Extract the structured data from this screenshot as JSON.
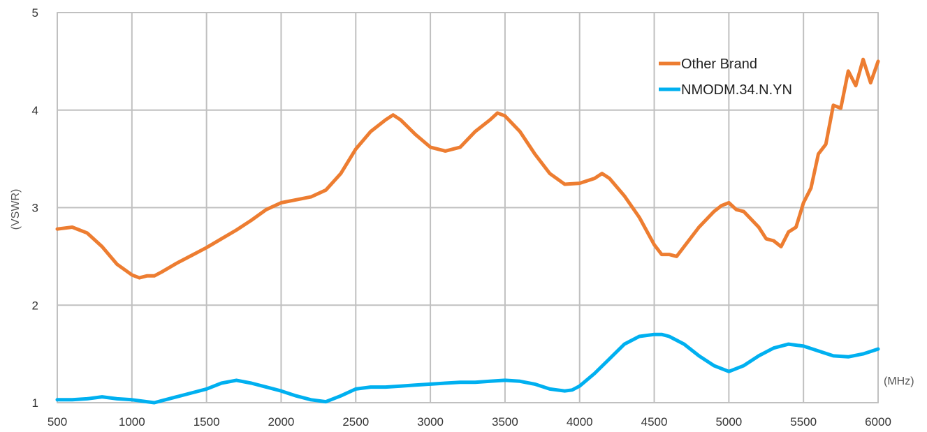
{
  "chart_data": {
    "type": "line",
    "title": "",
    "xlabel": "(MHz)",
    "ylabel": "(VSWR)",
    "xlim": [
      500,
      6000
    ],
    "ylim": [
      1,
      5
    ],
    "xticks": [
      500,
      1000,
      1500,
      2000,
      2500,
      3000,
      3500,
      4000,
      4500,
      5000,
      5500,
      6000
    ],
    "yticks": [
      1,
      2,
      3,
      4,
      5
    ],
    "grid": true,
    "legend_position": "top-right",
    "series": [
      {
        "name": "Other Brand",
        "color": "#ed7d31",
        "x": [
          500,
          600,
          700,
          800,
          900,
          1000,
          1050,
          1100,
          1150,
          1200,
          1300,
          1400,
          1500,
          1600,
          1700,
          1800,
          1900,
          2000,
          2100,
          2200,
          2300,
          2400,
          2500,
          2600,
          2700,
          2750,
          2800,
          2900,
          3000,
          3100,
          3200,
          3300,
          3400,
          3450,
          3500,
          3600,
          3700,
          3800,
          3900,
          4000,
          4100,
          4150,
          4200,
          4300,
          4400,
          4500,
          4550,
          4600,
          4650,
          4700,
          4800,
          4900,
          4950,
          5000,
          5050,
          5100,
          5200,
          5250,
          5300,
          5350,
          5400,
          5450,
          5500,
          5550,
          5600,
          5650,
          5700,
          5750,
          5800,
          5850,
          5900,
          5950,
          6000
        ],
        "values": [
          2.78,
          2.8,
          2.74,
          2.6,
          2.42,
          2.31,
          2.28,
          2.3,
          2.3,
          2.34,
          2.43,
          2.51,
          2.59,
          2.68,
          2.77,
          2.87,
          2.98,
          3.05,
          3.08,
          3.11,
          3.18,
          3.35,
          3.6,
          3.78,
          3.9,
          3.95,
          3.9,
          3.75,
          3.62,
          3.58,
          3.62,
          3.78,
          3.9,
          3.97,
          3.94,
          3.78,
          3.55,
          3.35,
          3.24,
          3.25,
          3.3,
          3.35,
          3.3,
          3.12,
          2.9,
          2.62,
          2.52,
          2.52,
          2.5,
          2.6,
          2.8,
          2.96,
          3.02,
          3.05,
          2.98,
          2.96,
          2.8,
          2.68,
          2.66,
          2.6,
          2.75,
          2.8,
          3.05,
          3.2,
          3.55,
          3.65,
          4.05,
          4.02,
          4.4,
          4.25,
          4.52,
          4.28,
          4.5
        ]
      },
      {
        "name": "NMODM.34.N.YN",
        "color": "#00b0f0",
        "x": [
          500,
          600,
          700,
          800,
          900,
          1000,
          1100,
          1150,
          1200,
          1300,
          1400,
          1500,
          1600,
          1700,
          1800,
          1900,
          2000,
          2100,
          2200,
          2300,
          2400,
          2500,
          2600,
          2700,
          2800,
          2900,
          3000,
          3100,
          3200,
          3300,
          3400,
          3500,
          3600,
          3700,
          3800,
          3900,
          3950,
          4000,
          4100,
          4200,
          4300,
          4400,
          4500,
          4550,
          4600,
          4700,
          4800,
          4900,
          5000,
          5100,
          5200,
          5300,
          5400,
          5500,
          5600,
          5700,
          5800,
          5900,
          6000
        ],
        "values": [
          1.03,
          1.03,
          1.04,
          1.06,
          1.04,
          1.03,
          1.01,
          1.0,
          1.02,
          1.06,
          1.1,
          1.14,
          1.2,
          1.23,
          1.2,
          1.16,
          1.12,
          1.07,
          1.03,
          1.01,
          1.07,
          1.14,
          1.16,
          1.16,
          1.17,
          1.18,
          1.19,
          1.2,
          1.21,
          1.21,
          1.22,
          1.23,
          1.22,
          1.19,
          1.14,
          1.12,
          1.13,
          1.17,
          1.3,
          1.45,
          1.6,
          1.68,
          1.7,
          1.7,
          1.68,
          1.6,
          1.48,
          1.38,
          1.32,
          1.38,
          1.48,
          1.56,
          1.6,
          1.58,
          1.53,
          1.48,
          1.47,
          1.5,
          1.55
        ]
      }
    ]
  }
}
